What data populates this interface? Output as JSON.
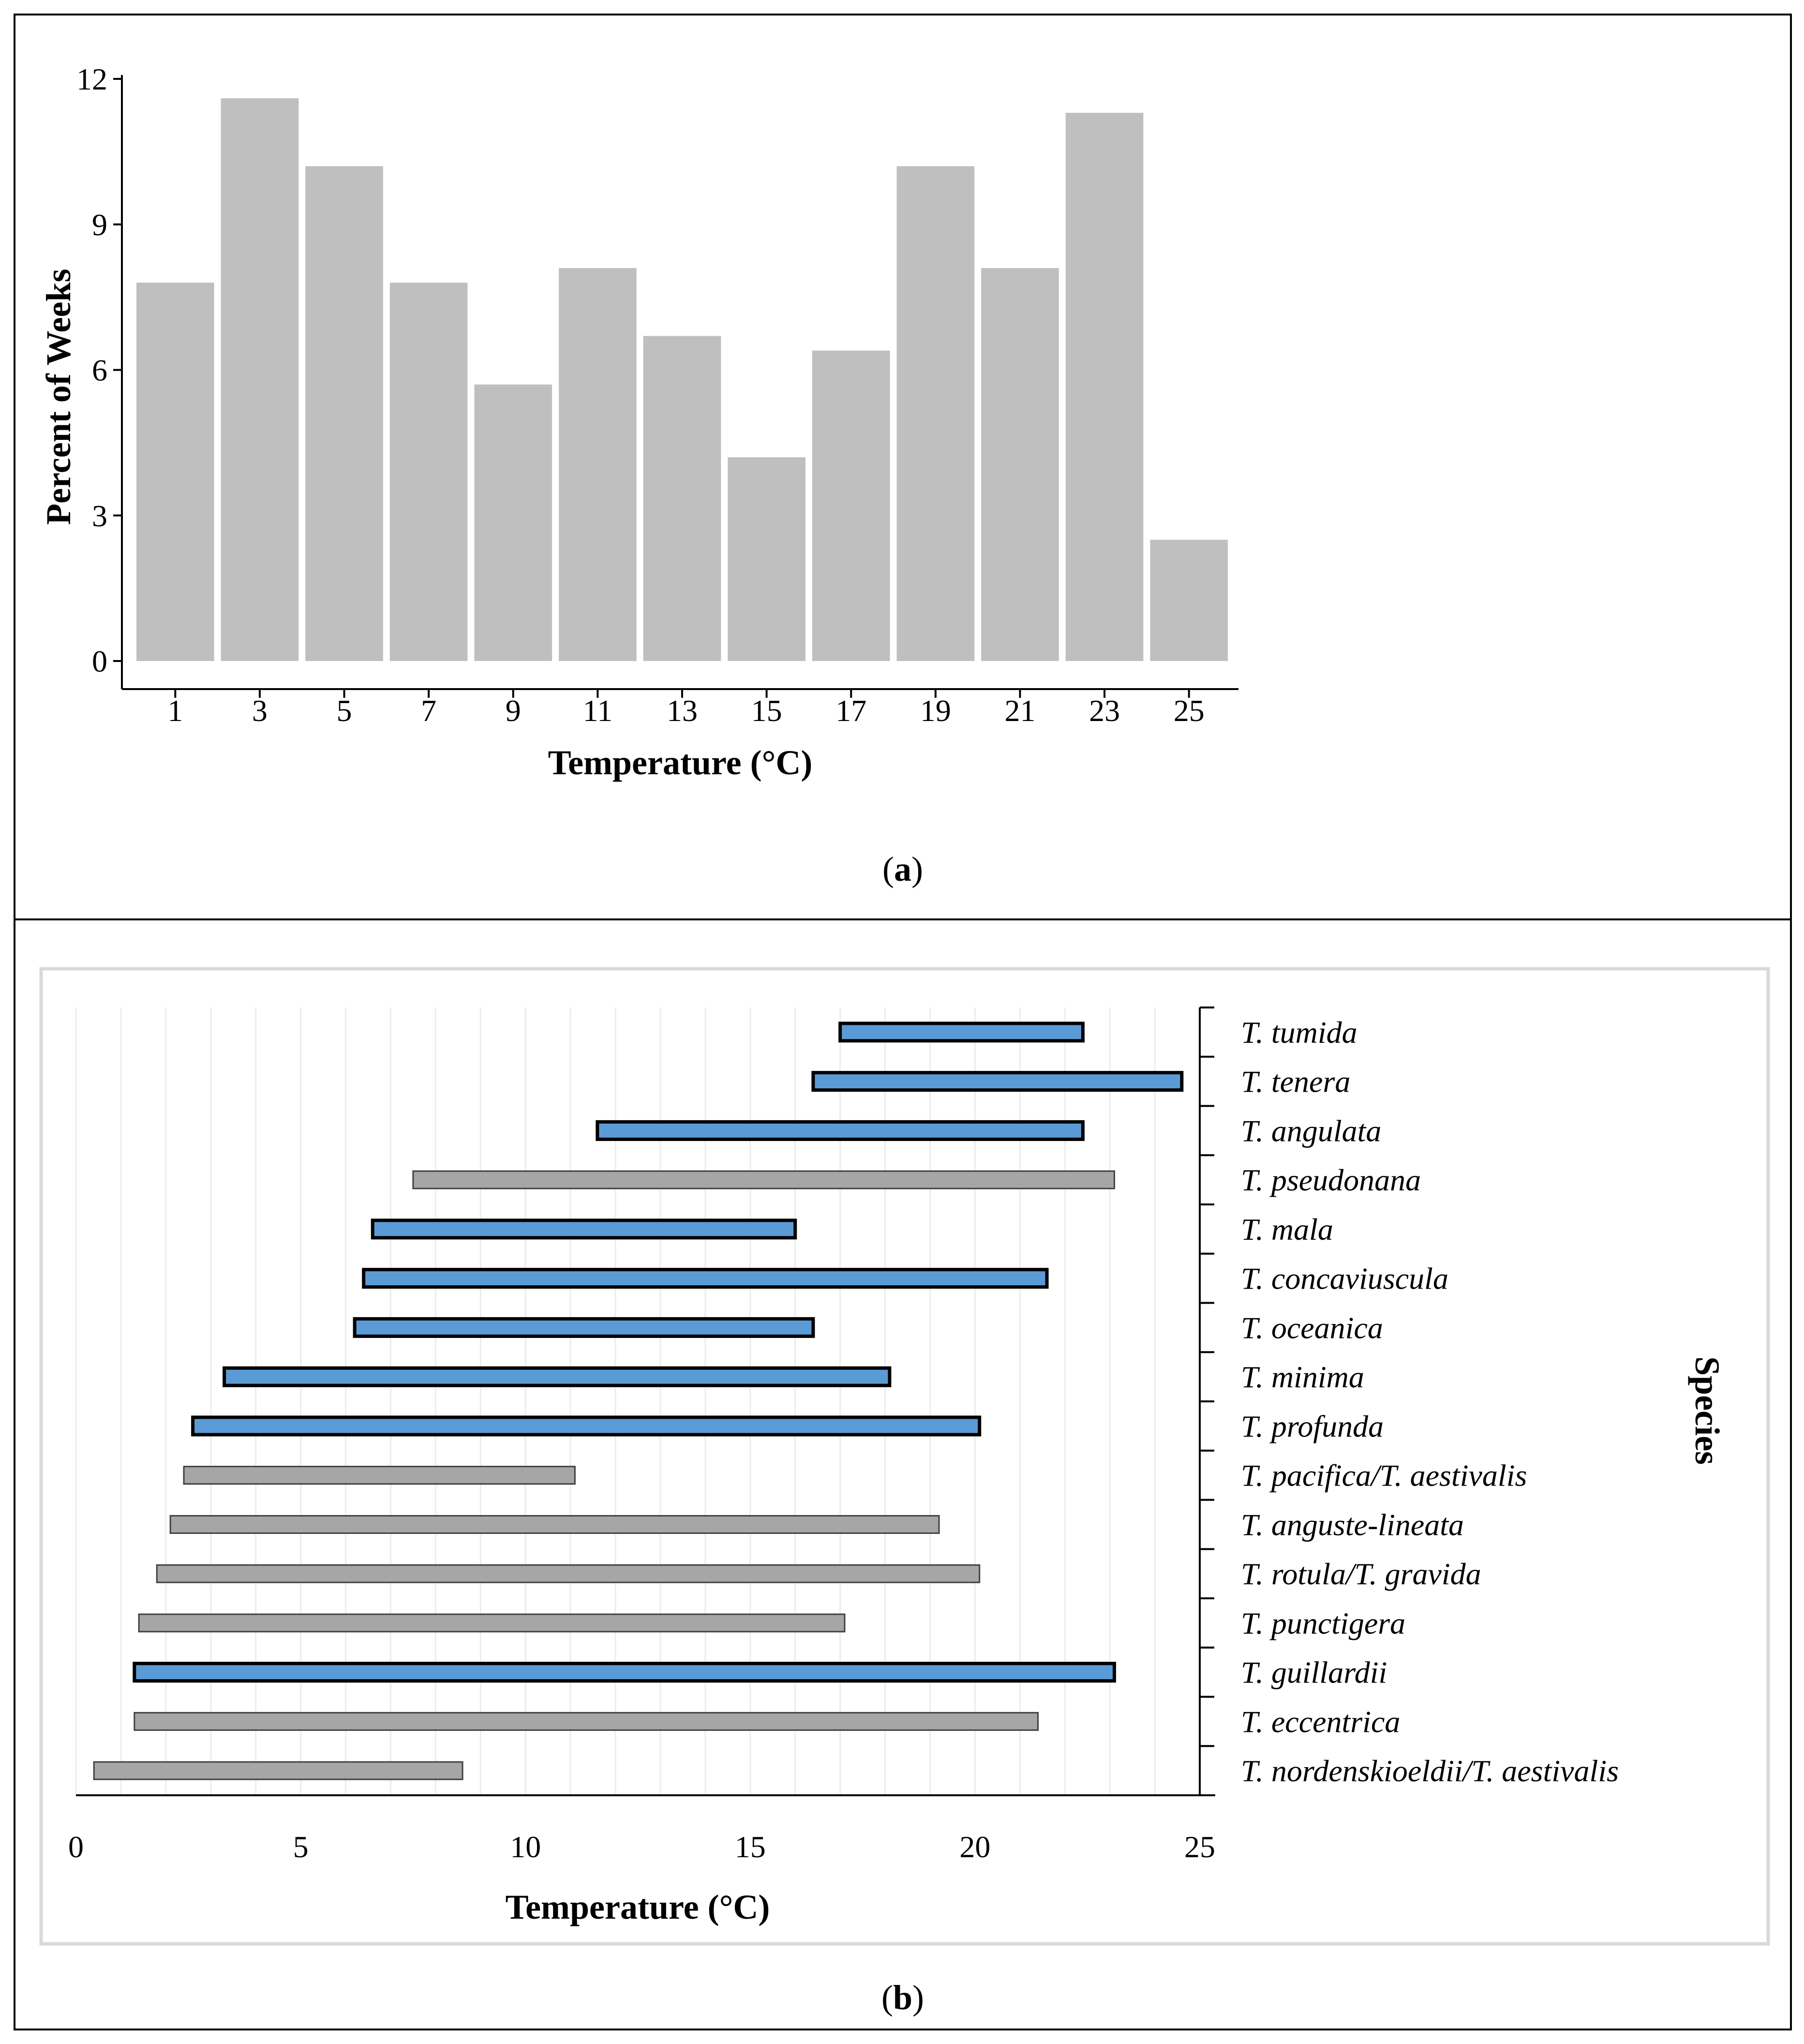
{
  "panels": {
    "a": {
      "label": "a"
    },
    "b": {
      "label": "b"
    }
  },
  "colors": {
    "hist_bar": "#bfbfbf",
    "range_blue": "#5b9bd5",
    "range_gray": "#a6a6a6",
    "axis": "#000000"
  },
  "chart_data": [
    {
      "type": "bar",
      "categories": [
        "1",
        "3",
        "5",
        "7",
        "9",
        "11",
        "13",
        "15",
        "17",
        "19",
        "21",
        "23",
        "25"
      ],
      "values": [
        7.8,
        11.6,
        10.2,
        7.8,
        5.7,
        8.1,
        6.7,
        4.2,
        6.4,
        10.2,
        8.1,
        11.3,
        2.5
      ],
      "xlabel": "Temperature (°C)",
      "ylabel": "Percent of Weeks",
      "ylim": [
        0,
        12
      ],
      "yticks": [
        0,
        3,
        6,
        9,
        12
      ],
      "grid": false
    },
    {
      "type": "bar",
      "orientation": "horizontal-range",
      "xlabel": "Temperature (°C)",
      "ylabel": "Species",
      "xlim": [
        0,
        25
      ],
      "xticks": [
        0,
        5,
        10,
        15,
        20,
        25
      ],
      "grid": true,
      "series": [
        {
          "species": "T. tumida",
          "min": 17.0,
          "max": 22.4,
          "style": "blue"
        },
        {
          "species": "T. tenera",
          "min": 16.4,
          "max": 24.6,
          "style": "blue"
        },
        {
          "species": "T. angulata",
          "min": 11.6,
          "max": 22.4,
          "style": "blue"
        },
        {
          "species": "T. pseudonana",
          "min": 7.5,
          "max": 23.1,
          "style": "gray"
        },
        {
          "species": "T. mala",
          "min": 6.6,
          "max": 16.0,
          "style": "blue"
        },
        {
          "species": "T. concaviuscula",
          "min": 6.4,
          "max": 21.6,
          "style": "blue"
        },
        {
          "species": "T. oceanica",
          "min": 6.2,
          "max": 16.4,
          "style": "blue"
        },
        {
          "species": "T. minima",
          "min": 3.3,
          "max": 18.1,
          "style": "blue"
        },
        {
          "species": "T. profunda",
          "min": 2.6,
          "max": 20.1,
          "style": "blue"
        },
        {
          "species": "T. pacifica/T. aestivalis",
          "min": 2.4,
          "max": 11.1,
          "style": "gray"
        },
        {
          "species": "T. anguste-lineata",
          "min": 2.1,
          "max": 19.2,
          "style": "gray"
        },
        {
          "species": "T. rotula/T. gravida",
          "min": 1.8,
          "max": 20.1,
          "style": "gray"
        },
        {
          "species": "T. punctigera",
          "min": 1.4,
          "max": 17.1,
          "style": "gray"
        },
        {
          "species": "T. guillardii",
          "min": 1.3,
          "max": 23.1,
          "style": "blue"
        },
        {
          "species": "T. eccentrica",
          "min": 1.3,
          "max": 21.4,
          "style": "gray"
        },
        {
          "species": "T. nordenskioeldii/T. aestivalis",
          "min": 0.4,
          "max": 8.6,
          "style": "gray"
        }
      ]
    }
  ]
}
